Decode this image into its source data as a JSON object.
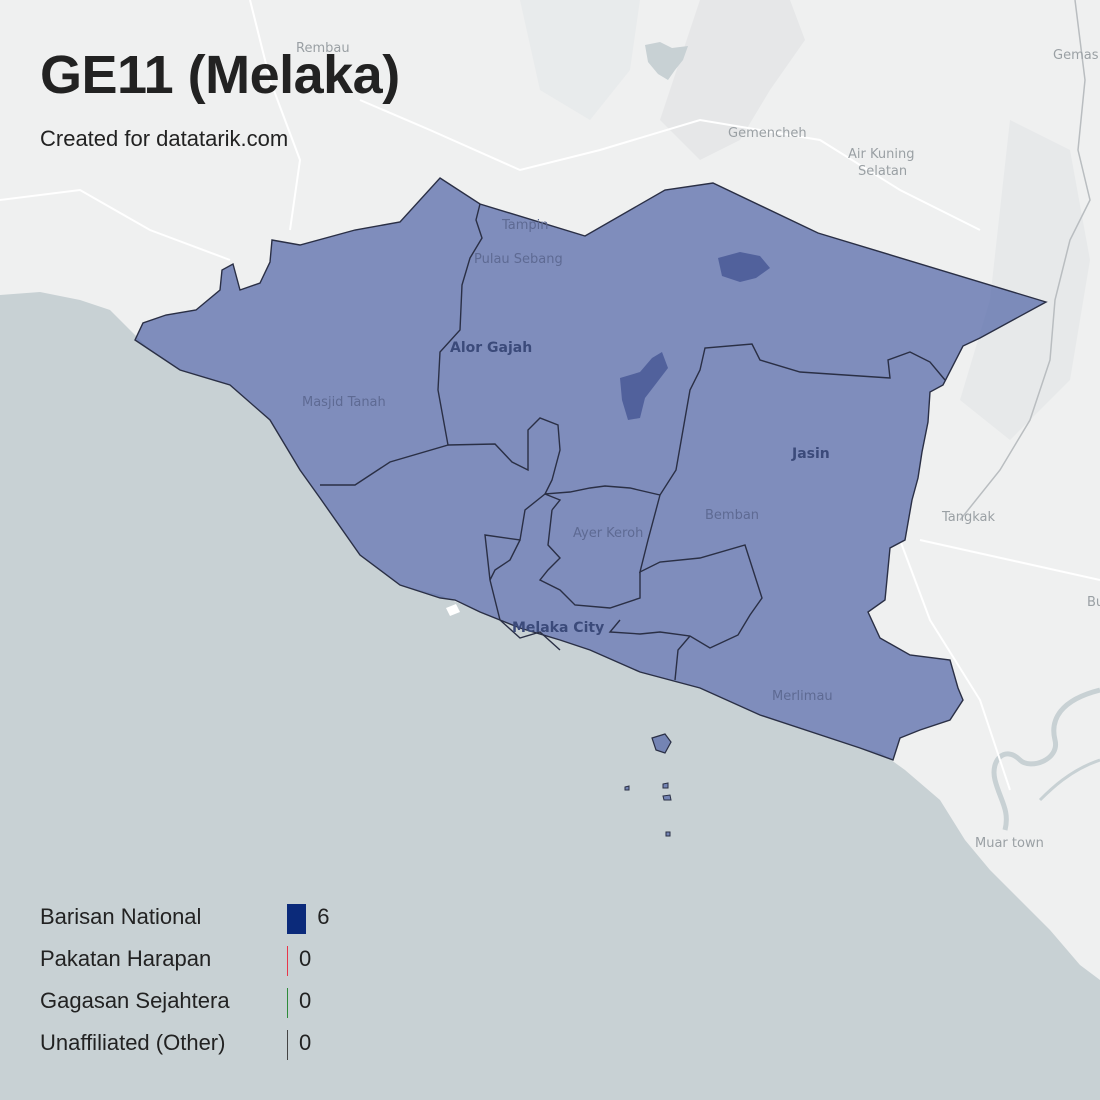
{
  "title": "GE11 (Melaka)",
  "subtitle": "Created for datatarik.com",
  "colors": {
    "sea": "#c8d1d4",
    "land": "#eff0f0",
    "region_fill": "#5366a8",
    "region_border": "#2a2f45"
  },
  "place_labels": {
    "rembau": "Rembau",
    "gemas": "Gemas",
    "gemencheh": "Gemencheh",
    "air_kuning_1": "Air Kuning",
    "air_kuning_2": "Selatan",
    "tampin": "Tampin",
    "pulau_sebang": "Pulau Sebang",
    "alor_gajah": "Alor Gajah",
    "masjid_tanah": "Masjid Tanah",
    "jasin": "Jasin",
    "ayer_keroh": "Ayer Keroh",
    "bemban": "Bemban",
    "tangkak": "Tangkak",
    "bu": "Bu",
    "melaka_city": "Melaka City",
    "merlimau": "Merlimau",
    "muar_town": "Muar town"
  },
  "legend": [
    {
      "label": "Barisan National",
      "count": "6",
      "value": 6,
      "color": "#0b2a7a"
    },
    {
      "label": "Pakatan Harapan",
      "count": "0",
      "value": 0,
      "color": "#e8364a"
    },
    {
      "label": "Gagasan Sejahtera",
      "count": "0",
      "value": 0,
      "color": "#2e8b3a"
    },
    {
      "label": "Unaffiliated (Other)",
      "count": "0",
      "value": 0,
      "color": "#444444"
    }
  ]
}
